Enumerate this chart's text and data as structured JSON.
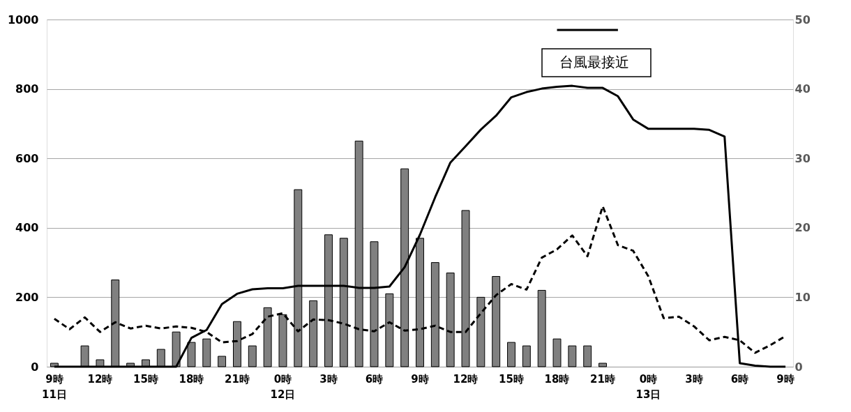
{
  "chart_data": {
    "type": "bar",
    "categories": [
      "9時\n11日",
      null,
      null,
      "12時",
      null,
      null,
      "15時",
      null,
      null,
      "18時",
      null,
      null,
      "21時",
      null,
      null,
      "0時\n12日",
      null,
      null,
      "3時",
      null,
      null,
      "6時",
      null,
      null,
      "9時",
      null,
      null,
      "12時",
      null,
      null,
      "15時",
      null,
      null,
      "18時",
      null,
      null,
      "21時",
      null,
      null,
      "0時\n13日",
      null,
      null,
      "3時",
      null,
      null,
      "6時",
      null,
      null,
      "9時"
    ],
    "series": [
      {
        "color": "#808080",
        "values": [
          10,
          null,
          60,
          20,
          250,
          10,
          20,
          50,
          100,
          70,
          80,
          30,
          130,
          60,
          170,
          150,
          510,
          190,
          380,
          370,
          650,
          360,
          210,
          570,
          370,
          300,
          270,
          450,
          200,
          260,
          70,
          60,
          220,
          80,
          60,
          60,
          10,
          null,
          null,
          null,
          null,
          null,
          null,
          null,
          null,
          null,
          null,
          null,
          null
        ]
      },
      {
        "type": "line",
        "color": "#000000",
        "line_style": "solid",
        "values": [
          0,
          0,
          0,
          0,
          0,
          0,
          0,
          0,
          0,
          83,
          106,
          180,
          210,
          223,
          226,
          226,
          233,
          233,
          233,
          233,
          227,
          227,
          231,
          287,
          380,
          488,
          588,
          635,
          683,
          723,
          776,
          791,
          801,
          806,
          809,
          803,
          803,
          779,
          712,
          685,
          685,
          685,
          685,
          682,
          663,
          10,
          3,
          0,
          0
        ]
      },
      {
        "type": "line",
        "color": "#000000",
        "line_style": "dashed",
        "axis": "y2",
        "values": [
          6.9,
          5.4,
          7.1,
          5.0,
          6.4,
          5.5,
          5.9,
          5.5,
          5.8,
          5.6,
          5.0,
          3.5,
          3.7,
          4.7,
          7.2,
          7.7,
          5.1,
          6.8,
          6.7,
          6.2,
          5.4,
          5.1,
          6.4,
          5.2,
          5.4,
          5.9,
          5.0,
          5.0,
          7.7,
          10.3,
          11.9,
          11.1,
          15.7,
          16.9,
          18.9,
          15.9,
          23.1,
          17.5,
          16.7,
          13.0,
          7.0,
          7.2,
          5.8,
          3.8,
          4.3,
          3.8,
          2.0,
          3.1,
          4.4
        ]
      },
      {
        "type": "line",
        "color": "#000000",
        "line_style": "solid",
        "values": [
          null,
          null,
          null,
          null,
          null,
          null,
          null,
          null,
          null,
          null,
          null,
          null,
          null,
          null,
          null,
          null,
          null,
          null,
          null,
          null,
          null,
          null,
          null,
          null,
          null,
          null,
          null,
          null,
          null,
          null,
          null,
          null,
          null,
          970,
          970,
          970,
          970,
          970,
          null,
          null,
          null,
          null,
          null,
          null,
          null,
          null,
          null,
          null,
          null
        ]
      }
    ],
    "ylim": [
      0,
      1000
    ],
    "yticks": [
      0,
      200,
      400,
      600,
      800,
      1000
    ],
    "y2lim": [
      0,
      50
    ],
    "y2ticks": [
      0,
      10,
      20,
      30,
      40,
      50
    ],
    "grid": "y",
    "annotations": [
      "台風最接近"
    ]
  }
}
